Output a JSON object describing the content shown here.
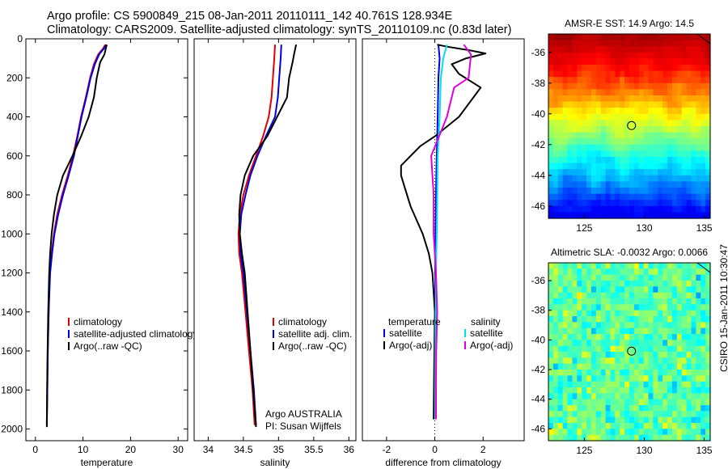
{
  "figure": {
    "title_line1": "Argo profile: CS 5900849_215 08-Jan-2011 20110111_142 40.761S 128.934E",
    "title_line2": "Climatology: CARS2009. Satellite-adjusted climatology: synTS_20110109.nc (0.83d later)",
    "credit": "CSIRO 15-Jan-2011 10:30:47",
    "colors": {
      "clim": "#e00000",
      "sat": "#0000e0",
      "argo": "#000000",
      "sat_sal": "#00e0f0",
      "argo_sal": "#e000e0"
    }
  },
  "chart_data": [
    {
      "type": "line",
      "id": "temperature",
      "xlabel": "temperature",
      "ylabel": "",
      "xlim": [
        -2,
        32
      ],
      "ylim": [
        2060,
        0
      ],
      "xticks": [
        0,
        10,
        20,
        30
      ],
      "yticks": [
        0,
        200,
        400,
        600,
        800,
        1000,
        1200,
        1400,
        1600,
        1800,
        2000
      ],
      "legend_entries": [
        "climatology",
        "satellite-adjusted climatology",
        "Argo(..raw -QC)"
      ],
      "legend_placement": "lower-right",
      "series": [
        {
          "name": "climatology",
          "color_key": "clim",
          "points": [
            [
              14.7,
              30
            ],
            [
              14.2,
              50
            ],
            [
              13.2,
              80
            ],
            [
              12.3,
              130
            ],
            [
              11.5,
              200
            ],
            [
              10.6,
              300
            ],
            [
              9.6,
              400
            ],
            [
              8.8,
              500
            ],
            [
              7.9,
              600
            ],
            [
              6.8,
              700
            ],
            [
              5.6,
              800
            ],
            [
              4.6,
              900
            ],
            [
              3.9,
              1000
            ],
            [
              3.4,
              1100
            ],
            [
              3.0,
              1200
            ],
            [
              2.8,
              1400
            ],
            [
              2.6,
              1600
            ],
            [
              2.5,
              1800
            ],
            [
              2.4,
              1970
            ]
          ]
        },
        {
          "name": "satellite-adjusted climatology",
          "color_key": "sat",
          "points": [
            [
              14.9,
              30
            ],
            [
              14.4,
              50
            ],
            [
              13.4,
              80
            ],
            [
              12.5,
              130
            ],
            [
              11.6,
              200
            ],
            [
              10.7,
              300
            ],
            [
              9.7,
              400
            ],
            [
              8.9,
              500
            ],
            [
              8.1,
              600
            ],
            [
              7.0,
              700
            ],
            [
              5.8,
              800
            ],
            [
              4.8,
              900
            ],
            [
              4.0,
              1000
            ],
            [
              3.5,
              1100
            ],
            [
              3.1,
              1200
            ],
            [
              2.8,
              1400
            ],
            [
              2.6,
              1600
            ],
            [
              2.5,
              1800
            ],
            [
              2.4,
              1980
            ]
          ]
        },
        {
          "name": "Argo(..raw -QC)",
          "color_key": "argo",
          "points": [
            [
              15.0,
              30
            ],
            [
              14.8,
              50
            ],
            [
              14.5,
              80
            ],
            [
              13.6,
              120
            ],
            [
              12.9,
              200
            ],
            [
              12.3,
              300
            ],
            [
              11.2,
              400
            ],
            [
              9.6,
              500
            ],
            [
              7.8,
              600
            ],
            [
              5.8,
              700
            ],
            [
              4.6,
              800
            ],
            [
              3.9,
              900
            ],
            [
              3.4,
              1000
            ],
            [
              3.1,
              1100
            ],
            [
              2.9,
              1200
            ],
            [
              2.7,
              1400
            ],
            [
              2.55,
              1600
            ],
            [
              2.45,
              1800
            ],
            [
              2.4,
              1990
            ]
          ]
        }
      ]
    },
    {
      "type": "line",
      "id": "salinity",
      "xlabel": "salinity",
      "ylabel": "",
      "xlim": [
        33.8,
        36.1
      ],
      "ylim": [
        2060,
        0
      ],
      "xticks": [
        34,
        34.5,
        35,
        35.5,
        36
      ],
      "yticks": [],
      "legend_entries": [
        "climatology",
        "satellite adj. clim.",
        "Argo(..raw -QC)"
      ],
      "legend_placement": "lower-right",
      "annotation_line1": "Argo AUSTRALIA",
      "annotation_line2": "PI: Susan Wijffels",
      "series": [
        {
          "name": "climatology",
          "color_key": "clim",
          "points": [
            [
              34.95,
              30
            ],
            [
              34.94,
              100
            ],
            [
              34.92,
              200
            ],
            [
              34.9,
              300
            ],
            [
              34.86,
              400
            ],
            [
              34.78,
              500
            ],
            [
              34.68,
              600
            ],
            [
              34.58,
              700
            ],
            [
              34.5,
              800
            ],
            [
              34.45,
              900
            ],
            [
              34.43,
              1000
            ],
            [
              34.44,
              1100
            ],
            [
              34.48,
              1200
            ],
            [
              34.53,
              1400
            ],
            [
              34.58,
              1600
            ],
            [
              34.63,
              1800
            ],
            [
              34.66,
              1980
            ]
          ]
        },
        {
          "name": "satellite adj. clim.",
          "color_key": "sat",
          "points": [
            [
              35.04,
              30
            ],
            [
              35.03,
              100
            ],
            [
              35.01,
              200
            ],
            [
              34.99,
              300
            ],
            [
              34.95,
              400
            ],
            [
              34.82,
              500
            ],
            [
              34.7,
              600
            ],
            [
              34.6,
              700
            ],
            [
              34.53,
              800
            ],
            [
              34.47,
              900
            ],
            [
              34.45,
              1000
            ],
            [
              34.46,
              1100
            ],
            [
              34.5,
              1200
            ],
            [
              34.55,
              1400
            ],
            [
              34.6,
              1600
            ],
            [
              34.65,
              1800
            ],
            [
              34.68,
              1980
            ]
          ]
        },
        {
          "name": "Argo(..raw -QC)",
          "color_key": "argo",
          "points": [
            [
              35.25,
              30
            ],
            [
              35.22,
              80
            ],
            [
              35.2,
              120
            ],
            [
              35.15,
              200
            ],
            [
              35.12,
              300
            ],
            [
              34.98,
              400
            ],
            [
              34.84,
              500
            ],
            [
              34.64,
              600
            ],
            [
              34.52,
              700
            ],
            [
              34.46,
              800
            ],
            [
              34.44,
              900
            ],
            [
              34.45,
              1000
            ],
            [
              34.48,
              1100
            ],
            [
              34.52,
              1200
            ],
            [
              34.56,
              1400
            ],
            [
              34.6,
              1600
            ],
            [
              34.64,
              1800
            ],
            [
              34.68,
              1990
            ]
          ]
        }
      ]
    },
    {
      "type": "line",
      "id": "difference",
      "xlabel": "difference from climatology",
      "ylabel": "",
      "xlim": [
        -3,
        3.7
      ],
      "ylim": [
        2060,
        0
      ],
      "xticks": [
        -2,
        0,
        2
      ],
      "yticks": [],
      "legend_entries": [
        "temperature",
        "satellite",
        "Argo(-adj)",
        "salinity",
        "satellite",
        "Argo(-adj)"
      ],
      "legend_placement": "lower-center",
      "series": [
        {
          "name": "temperature satellite",
          "color_key": "sat",
          "points": [
            [
              0.15,
              30
            ],
            [
              0.2,
              100
            ],
            [
              0.15,
              200
            ],
            [
              0.12,
              400
            ],
            [
              0.08,
              600
            ],
            [
              0.05,
              800
            ],
            [
              0.03,
              1000
            ],
            [
              0.02,
              1200
            ],
            [
              0.01,
              1500
            ],
            [
              0.0,
              1800
            ],
            [
              0.0,
              1950
            ]
          ]
        },
        {
          "name": "temperature Argo(-adj)",
          "color_key": "argo",
          "points": [
            [
              0.1,
              30
            ],
            [
              0.5,
              40
            ],
            [
              1.5,
              60
            ],
            [
              2.1,
              75
            ],
            [
              1.3,
              100
            ],
            [
              0.7,
              130
            ],
            [
              1.0,
              180
            ],
            [
              1.9,
              250
            ],
            [
              1.0,
              400
            ],
            [
              0.0,
              500
            ],
            [
              -0.6,
              550
            ],
            [
              -1.4,
              650
            ],
            [
              -1.4,
              700
            ],
            [
              -1.2,
              780
            ],
            [
              -1.0,
              860
            ],
            [
              -0.5,
              1000
            ],
            [
              -0.25,
              1100
            ],
            [
              -0.1,
              1200
            ],
            [
              0.0,
              1400
            ],
            [
              -0.03,
              1700
            ],
            [
              -0.05,
              1950
            ]
          ]
        },
        {
          "name": "salinity satellite",
          "color_key": "sat_sal",
          "points": [
            [
              0.5,
              30
            ],
            [
              0.35,
              100
            ],
            [
              0.25,
              200
            ],
            [
              0.2,
              400
            ],
            [
              0.12,
              600
            ],
            [
              0.1,
              800
            ],
            [
              0.08,
              1000
            ],
            [
              0.05,
              1200
            ],
            [
              0.03,
              1500
            ],
            [
              0.02,
              1800
            ],
            [
              0.02,
              1950
            ]
          ]
        },
        {
          "name": "salinity Argo(-adj)",
          "color_key": "argo_sal",
          "points": [
            [
              1.2,
              30
            ],
            [
              1.5,
              80
            ],
            [
              1.4,
              200
            ],
            [
              0.8,
              250
            ],
            [
              0.5,
              400
            ],
            [
              -0.15,
              600
            ],
            [
              -0.05,
              800
            ],
            [
              -0.05,
              1000
            ],
            [
              0.05,
              1200
            ],
            [
              0.1,
              1400
            ],
            [
              0.06,
              1600
            ],
            [
              0.05,
              1800
            ],
            [
              0.05,
              1950
            ]
          ]
        }
      ]
    },
    {
      "type": "heatmap",
      "id": "sst_map",
      "title": "AMSR-E SST: 14.9 Argo: 14.5",
      "xlim": [
        122,
        135.5
      ],
      "ylim": [
        -46.8,
        -34.8
      ],
      "xticks": [
        125,
        130,
        135
      ],
      "yticks": [
        -36,
        -38,
        -40,
        -42,
        -44,
        -46
      ],
      "marker": [
        128.934,
        -40.761
      ]
    },
    {
      "type": "heatmap",
      "id": "sla_map",
      "title": "Altimetric SLA: -0.0032 Argo: 0.0066",
      "xlim": [
        122,
        135.5
      ],
      "ylim": [
        -46.8,
        -34.8
      ],
      "xticks": [
        125,
        130,
        135
      ],
      "yticks": [
        -36,
        -38,
        -40,
        -42,
        -44,
        -46
      ],
      "marker": [
        128.934,
        -40.761
      ]
    }
  ]
}
